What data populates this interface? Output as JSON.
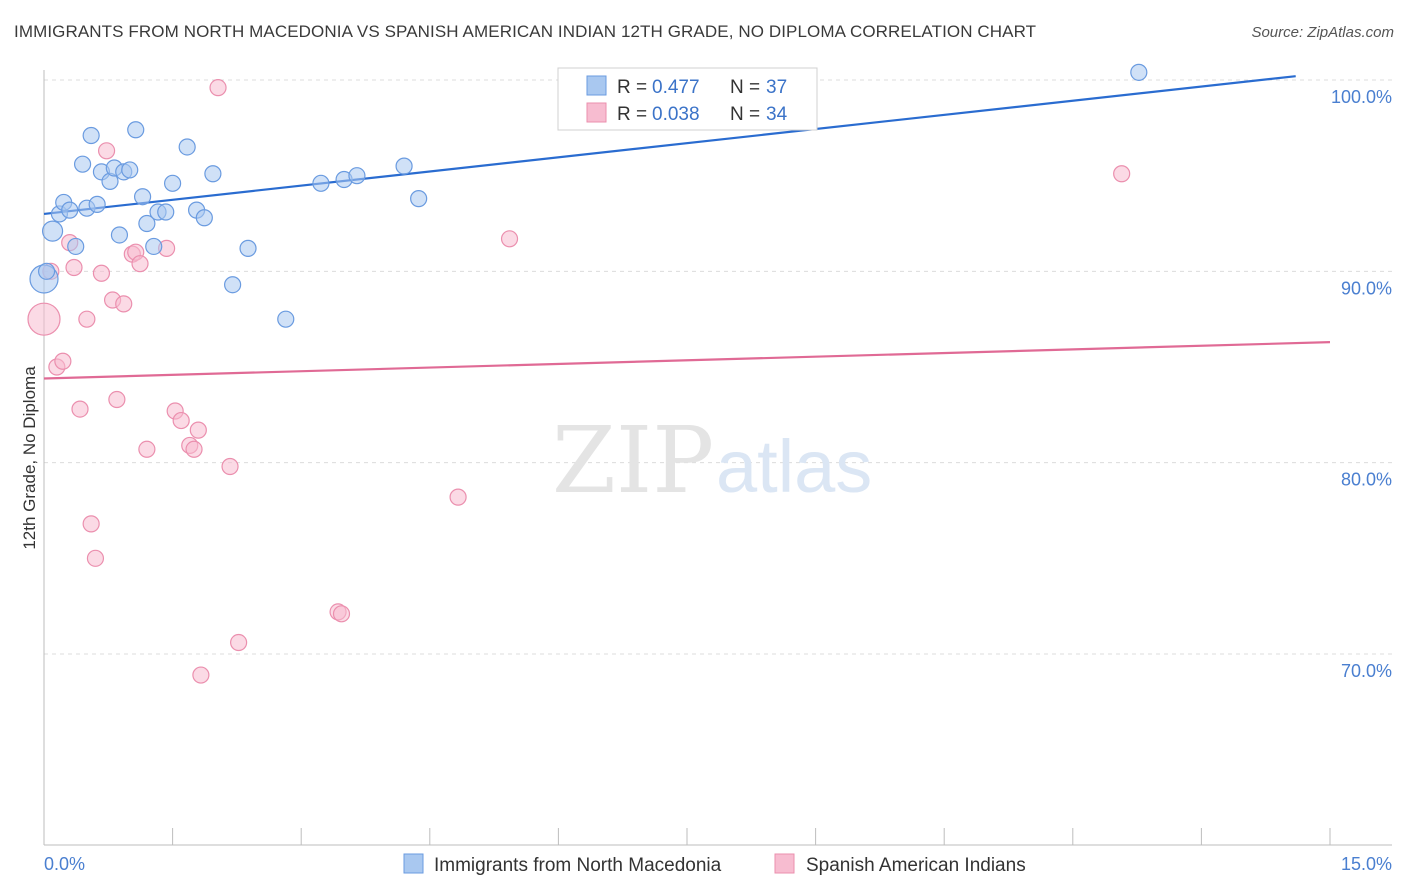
{
  "title": "IMMIGRANTS FROM NORTH MACEDONIA VS SPANISH AMERICAN INDIAN 12TH GRADE, NO DIPLOMA CORRELATION CHART",
  "source": "Source: ZipAtlas.com",
  "watermark": {
    "zip": "ZIP",
    "atlas": "atlas"
  },
  "colors": {
    "blue_fill": "#a9c8f0",
    "blue_stroke": "#6a9be0",
    "blue_line": "#2a6cd0",
    "pink_fill": "#f7bcd0",
    "pink_stroke": "#eb8fae",
    "pink_line": "#e06a95",
    "tick_text": "#4a7fd0",
    "grid": "#dcdcdc"
  },
  "legend": {
    "rows": [
      {
        "r_label": "R =",
        "r_value": "0.477",
        "n_label": "N =",
        "n_value": "37"
      },
      {
        "r_label": "R =",
        "r_value": "0.038",
        "n_label": "N =",
        "n_value": "34"
      }
    ]
  },
  "chart_data": {
    "type": "scatter",
    "title": "IMMIGRANTS FROM NORTH MACEDONIA VS SPANISH AMERICAN INDIAN 12TH GRADE, NO DIPLOMA CORRELATION CHART",
    "xlabel": "",
    "ylabel": "12th Grade, No Diploma",
    "xlim": [
      0,
      15
    ],
    "ylim": [
      60,
      101.5
    ],
    "x_tick_labels": [
      "0.0%",
      "15.0%"
    ],
    "y_ticks": [
      70,
      80,
      90,
      100
    ],
    "y_tick_labels": [
      "70.0%",
      "80.0%",
      "90.0%",
      "100.0%"
    ],
    "series": [
      {
        "name": "Immigrants from North Macedonia",
        "color": "blue",
        "trend": {
          "x": [
            0,
            14.6
          ],
          "y": [
            93.0,
            100.2
          ]
        },
        "points": [
          {
            "x": 0.0,
            "y": 89.6,
            "s": 14
          },
          {
            "x": 0.1,
            "y": 92.1,
            "s": 10
          },
          {
            "x": 0.18,
            "y": 93.0,
            "s": 8
          },
          {
            "x": 0.23,
            "y": 93.6,
            "s": 8
          },
          {
            "x": 0.3,
            "y": 93.2,
            "s": 8
          },
          {
            "x": 0.37,
            "y": 91.3,
            "s": 8
          },
          {
            "x": 0.45,
            "y": 95.6,
            "s": 8
          },
          {
            "x": 0.5,
            "y": 93.3,
            "s": 8
          },
          {
            "x": 0.55,
            "y": 97.1,
            "s": 8
          },
          {
            "x": 0.62,
            "y": 93.5,
            "s": 8
          },
          {
            "x": 0.67,
            "y": 95.2,
            "s": 8
          },
          {
            "x": 0.77,
            "y": 94.7,
            "s": 8
          },
          {
            "x": 0.82,
            "y": 95.4,
            "s": 8
          },
          {
            "x": 0.88,
            "y": 91.9,
            "s": 8
          },
          {
            "x": 0.93,
            "y": 95.2,
            "s": 8
          },
          {
            "x": 1.0,
            "y": 95.3,
            "s": 8
          },
          {
            "x": 1.07,
            "y": 97.4,
            "s": 8
          },
          {
            "x": 1.15,
            "y": 93.9,
            "s": 8
          },
          {
            "x": 1.2,
            "y": 92.5,
            "s": 8
          },
          {
            "x": 1.28,
            "y": 91.3,
            "s": 8
          },
          {
            "x": 1.33,
            "y": 93.1,
            "s": 8
          },
          {
            "x": 1.42,
            "y": 93.1,
            "s": 8
          },
          {
            "x": 1.5,
            "y": 94.6,
            "s": 8
          },
          {
            "x": 1.67,
            "y": 96.5,
            "s": 8
          },
          {
            "x": 1.78,
            "y": 93.2,
            "s": 8
          },
          {
            "x": 1.87,
            "y": 92.8,
            "s": 8
          },
          {
            "x": 1.97,
            "y": 95.1,
            "s": 8
          },
          {
            "x": 2.2,
            "y": 89.3,
            "s": 8
          },
          {
            "x": 2.38,
            "y": 91.2,
            "s": 8
          },
          {
            "x": 2.82,
            "y": 87.5,
            "s": 8
          },
          {
            "x": 3.23,
            "y": 94.6,
            "s": 8
          },
          {
            "x": 3.5,
            "y": 94.8,
            "s": 8
          },
          {
            "x": 3.65,
            "y": 95.0,
            "s": 8
          },
          {
            "x": 4.2,
            "y": 95.5,
            "s": 8
          },
          {
            "x": 4.37,
            "y": 93.8,
            "s": 8
          },
          {
            "x": 12.77,
            "y": 100.4,
            "s": 8
          },
          {
            "x": 0.03,
            "y": 90.0,
            "s": 8
          }
        ]
      },
      {
        "name": "Spanish American Indians",
        "color": "pink",
        "trend": {
          "x": [
            0,
            15
          ],
          "y": [
            84.4,
            86.3
          ]
        },
        "points": [
          {
            "x": 0.0,
            "y": 87.5,
            "s": 16
          },
          {
            "x": 0.08,
            "y": 90.0,
            "s": 8
          },
          {
            "x": 0.15,
            "y": 85.0,
            "s": 8
          },
          {
            "x": 0.22,
            "y": 85.3,
            "s": 8
          },
          {
            "x": 0.3,
            "y": 91.5,
            "s": 8
          },
          {
            "x": 0.35,
            "y": 90.2,
            "s": 8
          },
          {
            "x": 0.42,
            "y": 82.8,
            "s": 8
          },
          {
            "x": 0.5,
            "y": 87.5,
            "s": 8
          },
          {
            "x": 0.55,
            "y": 76.8,
            "s": 8
          },
          {
            "x": 0.6,
            "y": 75.0,
            "s": 8
          },
          {
            "x": 0.67,
            "y": 89.9,
            "s": 8
          },
          {
            "x": 0.73,
            "y": 96.3,
            "s": 8
          },
          {
            "x": 0.8,
            "y": 88.5,
            "s": 8
          },
          {
            "x": 0.85,
            "y": 83.3,
            "s": 8
          },
          {
            "x": 0.93,
            "y": 88.3,
            "s": 8
          },
          {
            "x": 1.03,
            "y": 90.9,
            "s": 8
          },
          {
            "x": 1.07,
            "y": 91.0,
            "s": 8
          },
          {
            "x": 1.12,
            "y": 90.4,
            "s": 8
          },
          {
            "x": 1.2,
            "y": 80.7,
            "s": 8
          },
          {
            "x": 1.43,
            "y": 91.2,
            "s": 8
          },
          {
            "x": 1.53,
            "y": 82.7,
            "s": 8
          },
          {
            "x": 1.6,
            "y": 82.2,
            "s": 8
          },
          {
            "x": 1.7,
            "y": 80.9,
            "s": 8
          },
          {
            "x": 1.75,
            "y": 80.7,
            "s": 8
          },
          {
            "x": 1.8,
            "y": 81.7,
            "s": 8
          },
          {
            "x": 1.83,
            "y": 68.9,
            "s": 8
          },
          {
            "x": 2.03,
            "y": 99.6,
            "s": 8
          },
          {
            "x": 2.17,
            "y": 79.8,
            "s": 8
          },
          {
            "x": 2.27,
            "y": 70.6,
            "s": 8
          },
          {
            "x": 3.43,
            "y": 72.2,
            "s": 8
          },
          {
            "x": 3.47,
            "y": 72.1,
            "s": 8
          },
          {
            "x": 4.83,
            "y": 78.2,
            "s": 8
          },
          {
            "x": 5.43,
            "y": 91.7,
            "s": 8
          },
          {
            "x": 12.57,
            "y": 95.1,
            "s": 8
          }
        ]
      }
    ]
  }
}
